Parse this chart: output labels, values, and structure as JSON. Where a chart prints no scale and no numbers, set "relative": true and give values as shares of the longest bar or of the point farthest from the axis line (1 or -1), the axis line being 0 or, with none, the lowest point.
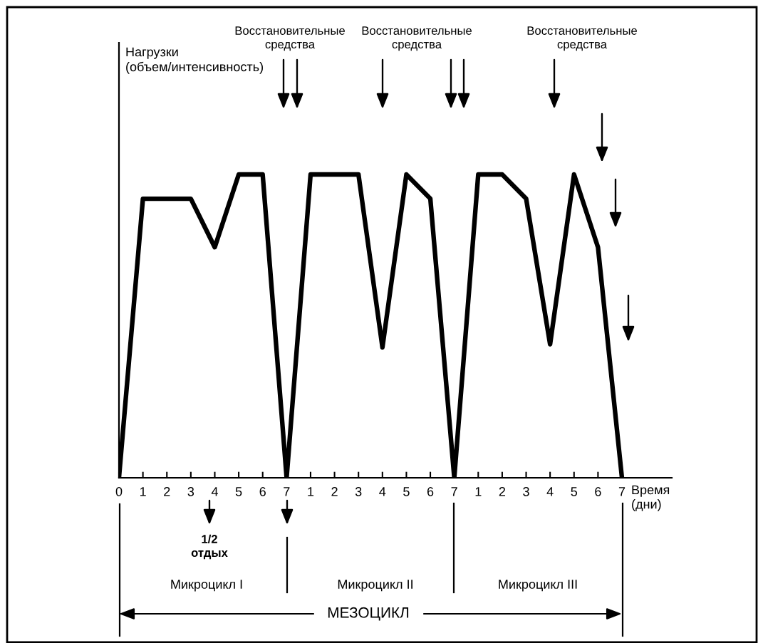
{
  "chart_data": {
    "type": "line",
    "relative": true,
    "xlabel": "Время\n(дни)",
    "categories": [
      "0",
      "1",
      "2",
      "3",
      "4",
      "5",
      "6",
      "7",
      "1",
      "2",
      "3",
      "4",
      "5",
      "6",
      "7",
      "1",
      "2",
      "3",
      "4",
      "5",
      "6",
      "7"
    ],
    "tick_labels": "x",
    "series": [
      {
        "color": "#000000",
        "values": [
          0,
          0.92,
          0.92,
          0.92,
          0.76,
          1.0,
          1.0,
          0,
          1.0,
          1.0,
          1.0,
          0.43,
          1.0,
          0.92,
          0,
          1.0,
          1.0,
          0.92,
          0.44,
          1.0,
          0.76,
          0
        ]
      }
    ],
    "annotations": [
      "Нагрузки\n(объем/интенсивность)",
      "Восстановительные\nсредства",
      "Восстановительные\nсредства",
      "Восстановительные\nсредства",
      "1/2\nотдых",
      "Микроцикл I",
      "Микроцикл II",
      "Микроцикл III",
      "МЕЗОЦИКЛ"
    ]
  }
}
